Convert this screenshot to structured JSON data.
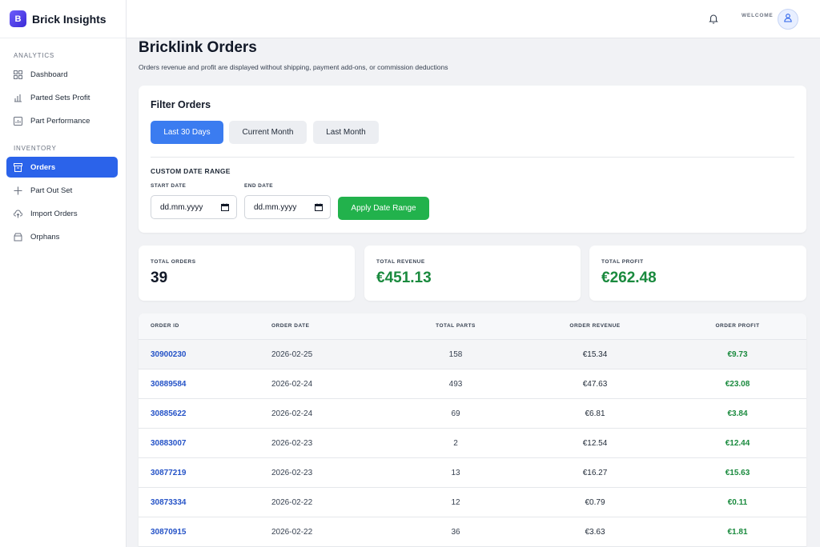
{
  "brand": {
    "logo_letter": "B",
    "name": "Brick Insights"
  },
  "sidebar": {
    "sections": [
      {
        "title": "ANALYTICS",
        "items": [
          {
            "label": "Dashboard",
            "icon": "grid-icon"
          },
          {
            "label": "Parted Sets Profit",
            "icon": "bar-chart-icon"
          },
          {
            "label": "Part Performance",
            "icon": "report-icon"
          }
        ]
      },
      {
        "title": "INVENTORY",
        "items": [
          {
            "label": "Orders",
            "icon": "archive-icon",
            "active": true
          },
          {
            "label": "Part Out Set",
            "icon": "plus-icon"
          },
          {
            "label": "Import Orders",
            "icon": "cloud-upload-icon"
          },
          {
            "label": "Orphans",
            "icon": "box-icon"
          }
        ]
      }
    ]
  },
  "topbar": {
    "welcome": "WELCOME",
    "bell_icon": "bell-icon",
    "avatar_icon": "user-icon"
  },
  "page": {
    "title": "Bricklink Orders",
    "subtitle": "Orders revenue and profit are displayed without shipping, payment add-ons, or commission deductions"
  },
  "filter": {
    "title": "Filter Orders",
    "presets": [
      "Last 30 Days",
      "Current Month",
      "Last Month"
    ],
    "custom_label": "CUSTOM DATE RANGE",
    "start_label": "START DATE",
    "end_label": "END DATE",
    "start_value": "dd.mm.yyyy",
    "end_value": "dd.mm.yyyy",
    "apply_label": "Apply Date Range"
  },
  "stats": [
    {
      "label": "TOTAL ORDERS",
      "value": "39"
    },
    {
      "label": "TOTAL REVENUE",
      "value": "€451.13"
    },
    {
      "label": "TOTAL PROFIT",
      "value": "€262.48"
    }
  ],
  "table": {
    "headers": [
      "ORDER ID",
      "ORDER DATE",
      "TOTAL PARTS",
      "ORDER REVENUE",
      "ORDER PROFIT"
    ],
    "rows": [
      {
        "id": "30900230",
        "date": "2026-02-25",
        "parts": "158",
        "revenue": "€15.34",
        "profit": "€9.73"
      },
      {
        "id": "30889584",
        "date": "2026-02-24",
        "parts": "493",
        "revenue": "€47.63",
        "profit": "€23.08"
      },
      {
        "id": "30885622",
        "date": "2026-02-24",
        "parts": "69",
        "revenue": "€6.81",
        "profit": "€3.84"
      },
      {
        "id": "30883007",
        "date": "2026-02-23",
        "parts": "2",
        "revenue": "€12.54",
        "profit": "€12.44"
      },
      {
        "id": "30877219",
        "date": "2026-02-23",
        "parts": "13",
        "revenue": "€16.27",
        "profit": "€15.63"
      },
      {
        "id": "30873334",
        "date": "2026-02-22",
        "parts": "12",
        "revenue": "€0.79",
        "profit": "€0.11"
      },
      {
        "id": "30870915",
        "date": "2026-02-22",
        "parts": "36",
        "revenue": "€3.63",
        "profit": "€1.81"
      }
    ]
  },
  "colors": {
    "accent": "#2b63ea",
    "primary_button": "#3b7cf0",
    "success": "#22b24c",
    "profit_text": "#1a8a3e",
    "link": "#2553c7"
  }
}
